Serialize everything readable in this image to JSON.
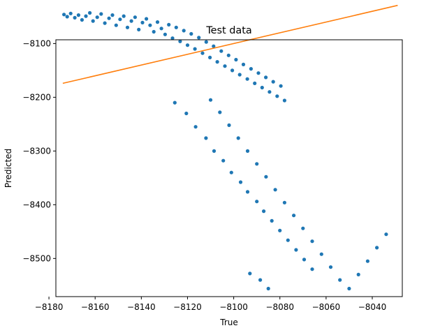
{
  "chart_data": {
    "type": "scatter",
    "title": "Test data",
    "xlabel": "True",
    "ylabel": "Predicted",
    "xlim": [
      -8177,
      -8027
    ],
    "ylim": [
      -8571,
      -8093
    ],
    "xticks": [
      -8180,
      -8160,
      -8140,
      -8120,
      -8100,
      -8080,
      -8060,
      -8040
    ],
    "yticks": [
      -8100,
      -8200,
      -8300,
      -8400,
      -8500
    ],
    "xtick_labels": [
      "−8180",
      "−8160",
      "−8140",
      "−8120",
      "−8100",
      "−8080",
      "−8060",
      "−8040"
    ],
    "ytick_labels": [
      "−8100",
      "−8200",
      "−8300",
      "−8400",
      "−8500"
    ],
    "grid": false,
    "legend": "none",
    "series": [
      {
        "type": "scatter",
        "color": "#1f77b4",
        "points": [
          [
            -8173.5,
            -8046
          ],
          [
            -8172.1,
            -8050
          ],
          [
            -8170.6,
            -8044
          ],
          [
            -8168.8,
            -8052
          ],
          [
            -8167.2,
            -8047
          ],
          [
            -8165.7,
            -8056
          ],
          [
            -8164.0,
            -8049
          ],
          [
            -8162.3,
            -8043
          ],
          [
            -8160.9,
            -8058
          ],
          [
            -8159.1,
            -8051
          ],
          [
            -8157.4,
            -8045
          ],
          [
            -8155.8,
            -8062
          ],
          [
            -8154.0,
            -8053
          ],
          [
            -8152.5,
            -8047
          ],
          [
            -8150.9,
            -8066
          ],
          [
            -8149.2,
            -8055
          ],
          [
            -8147.6,
            -8049
          ],
          [
            -8146.0,
            -8070
          ],
          [
            -8144.3,
            -8058
          ],
          [
            -8142.7,
            -8051
          ],
          [
            -8141.1,
            -8074
          ],
          [
            -8139.5,
            -8061
          ],
          [
            -8137.8,
            -8054
          ],
          [
            -8136.2,
            -8066
          ],
          [
            -8134.6,
            -8078
          ],
          [
            -8133.0,
            -8060
          ],
          [
            -8131.3,
            -8072
          ],
          [
            -8129.7,
            -8083
          ],
          [
            -8128.1,
            -8065
          ],
          [
            -8126.5,
            -8090
          ],
          [
            -8124.9,
            -8070
          ],
          [
            -8123.2,
            -8096
          ],
          [
            -8121.6,
            -8076
          ],
          [
            -8120.0,
            -8103
          ],
          [
            -8118.4,
            -8082
          ],
          [
            -8116.8,
            -8110
          ],
          [
            -8115.1,
            -8089
          ],
          [
            -8113.5,
            -8118
          ],
          [
            -8111.9,
            -8097
          ],
          [
            -8110.3,
            -8126
          ],
          [
            -8108.7,
            -8105
          ],
          [
            -8107.1,
            -8134
          ],
          [
            -8105.4,
            -8114
          ],
          [
            -8103.8,
            -8142
          ],
          [
            -8102.2,
            -8122
          ],
          [
            -8100.6,
            -8150
          ],
          [
            -8099.0,
            -8130
          ],
          [
            -8097.4,
            -8158
          ],
          [
            -8095.8,
            -8139
          ],
          [
            -8094.1,
            -8166
          ],
          [
            -8092.5,
            -8147
          ],
          [
            -8090.9,
            -8174
          ],
          [
            -8089.3,
            -8155
          ],
          [
            -8087.7,
            -8182
          ],
          [
            -8086.1,
            -8163
          ],
          [
            -8084.5,
            -8190
          ],
          [
            -8082.9,
            -8171
          ],
          [
            -8081.2,
            -8198
          ],
          [
            -8079.6,
            -8179
          ],
          [
            -8078.0,
            -8206
          ],
          [
            -8125.5,
            -8210
          ],
          [
            -8120.5,
            -8230
          ],
          [
            -8116.5,
            -8255
          ],
          [
            -8112.0,
            -8276
          ],
          [
            -8108.5,
            -8300
          ],
          [
            -8104.5,
            -8318
          ],
          [
            -8101.0,
            -8340
          ],
          [
            -8097.0,
            -8358
          ],
          [
            -8094.0,
            -8376
          ],
          [
            -8090.0,
            -8394
          ],
          [
            -8087.0,
            -8412
          ],
          [
            -8083.5,
            -8430
          ],
          [
            -8080.0,
            -8448
          ],
          [
            -8076.5,
            -8466
          ],
          [
            -8073.0,
            -8484
          ],
          [
            -8069.5,
            -8502
          ],
          [
            -8066.0,
            -8520
          ],
          [
            -8088.5,
            -8540
          ],
          [
            -8085.0,
            -8556
          ],
          [
            -8093.0,
            -8528
          ],
          [
            -8110.0,
            -8205
          ],
          [
            -8106.0,
            -8228
          ],
          [
            -8102.0,
            -8252
          ],
          [
            -8098.0,
            -8276
          ],
          [
            -8094.0,
            -8300
          ],
          [
            -8090.0,
            -8324
          ],
          [
            -8086.0,
            -8348
          ],
          [
            -8082.0,
            -8372
          ],
          [
            -8078.0,
            -8396
          ],
          [
            -8074.0,
            -8420
          ],
          [
            -8070.0,
            -8444
          ],
          [
            -8066.0,
            -8468
          ],
          [
            -8062.0,
            -8492
          ],
          [
            -8058.0,
            -8516
          ],
          [
            -8054.0,
            -8540
          ],
          [
            -8050.0,
            -8556
          ],
          [
            -8046.0,
            -8530
          ],
          [
            -8042.0,
            -8505
          ],
          [
            -8038.0,
            -8480
          ],
          [
            -8034.0,
            -8455
          ]
        ]
      },
      {
        "type": "line",
        "color": "#ff7f0e",
        "points": [
          [
            -8174,
            -8174
          ],
          [
            -8029,
            -8029
          ]
        ]
      }
    ]
  }
}
